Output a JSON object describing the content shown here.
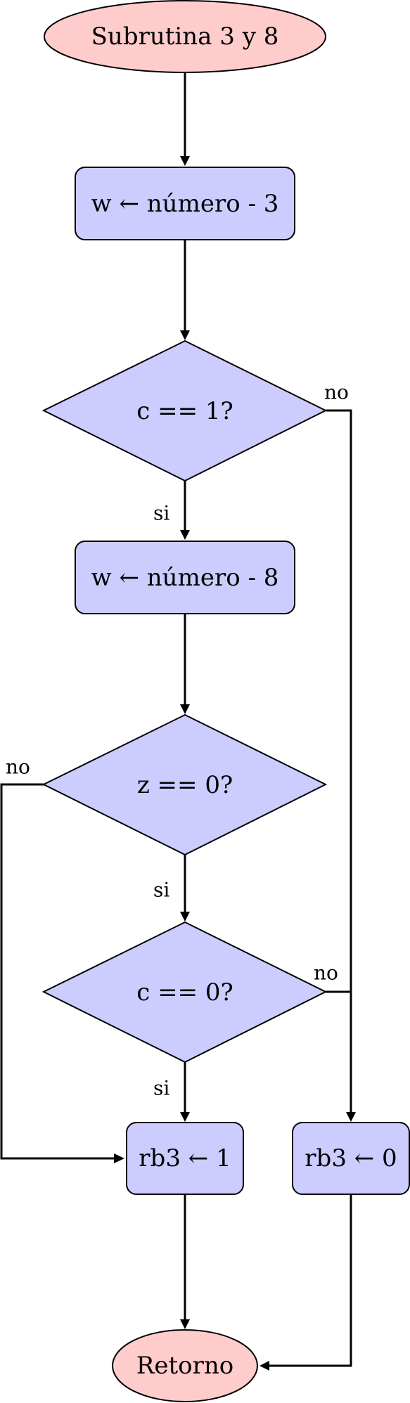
{
  "nodes": {
    "start": "Subrutina 3 y 8",
    "assign1": "w ← número - 3",
    "dec_c1": "c == 1?",
    "assign2": "w ← número - 8",
    "dec_z0": "z == 0?",
    "dec_c0": "c == 0?",
    "set1": "rb3 ← 1",
    "set0": "rb3 ← 0",
    "end": "Retorno"
  },
  "edges": {
    "c1_si": "si",
    "c1_no": "no",
    "z0_si": "si",
    "z0_no": "no",
    "c0_si": "si",
    "c0_no": "no"
  },
  "colors": {
    "terminal_fill": "#ffcccc",
    "process_fill": "#ccccff",
    "decision_fill": "#ccccff",
    "stroke": "#000000"
  }
}
